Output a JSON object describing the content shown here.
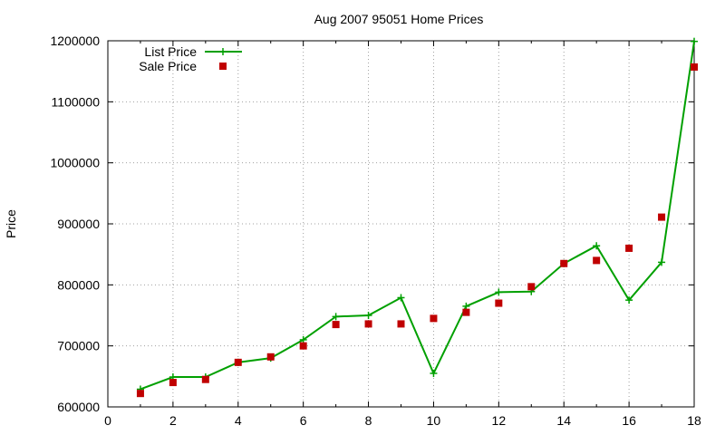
{
  "chart_data": {
    "type": "line",
    "title": "Aug 2007 95051 Home Prices",
    "xlabel": "",
    "ylabel": "Price",
    "xlim": [
      0,
      18
    ],
    "ylim": [
      600000,
      1200000
    ],
    "x_ticks": [
      0,
      2,
      4,
      6,
      8,
      10,
      12,
      14,
      16,
      18
    ],
    "y_ticks": [
      600000,
      700000,
      800000,
      900000,
      1000000,
      1100000,
      1200000
    ],
    "grid": true,
    "legend_position": "top-left",
    "series": [
      {
        "name": "List Price",
        "style": "line-plus",
        "color": "#00a000",
        "x": [
          1,
          2,
          3,
          4,
          5,
          6,
          7,
          8,
          9,
          10,
          11,
          12,
          13,
          14,
          15,
          16,
          17,
          18
        ],
        "values": [
          629000,
          649000,
          649000,
          673000,
          680000,
          710000,
          748000,
          750000,
          779000,
          655000,
          765000,
          788000,
          789000,
          835000,
          864000,
          775000,
          837000,
          1199000
        ]
      },
      {
        "name": "Sale Price",
        "style": "square-points",
        "color": "#c00000",
        "x": [
          1,
          2,
          3,
          4,
          5,
          6,
          7,
          8,
          9,
          10,
          11,
          12,
          13,
          14,
          15,
          16,
          17,
          18
        ],
        "values": [
          622000,
          640000,
          645000,
          673000,
          682000,
          700000,
          735000,
          736000,
          736000,
          745000,
          755000,
          770000,
          797000,
          835000,
          840000,
          860000,
          911000,
          1157000
        ]
      }
    ]
  }
}
